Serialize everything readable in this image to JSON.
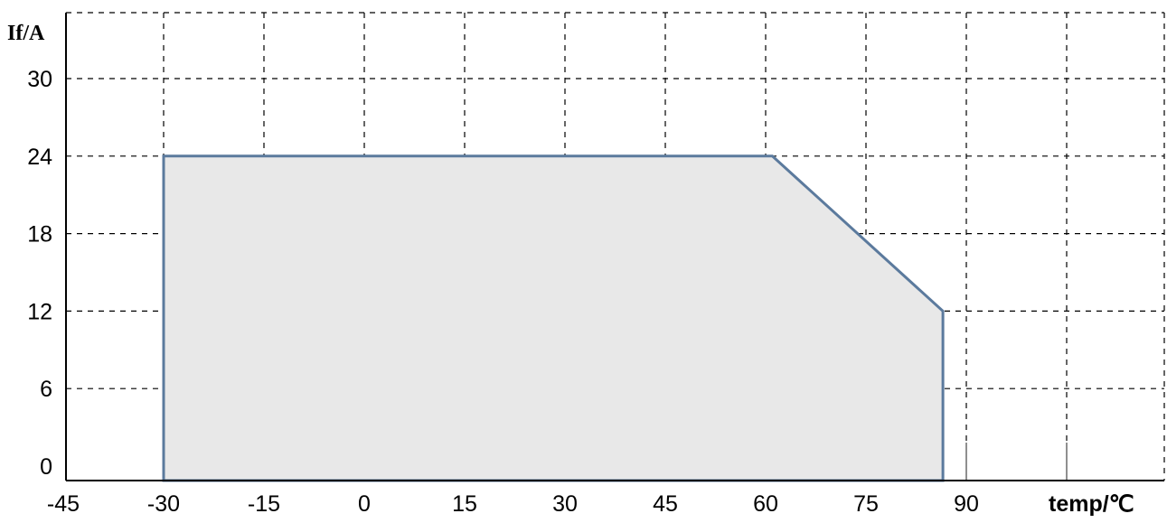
{
  "chart_data": {
    "type": "area",
    "title": "",
    "xlabel": "temp/℃",
    "ylabel": "If/A",
    "x_ticks": [
      "-45",
      "-30",
      "-15",
      "0",
      "15",
      "30",
      "45",
      "60",
      "75",
      "90"
    ],
    "y_ticks": [
      "0",
      "6",
      "12",
      "18",
      "24",
      "30"
    ],
    "xlim": [
      -45,
      120
    ],
    "ylim": [
      -1,
      36
    ],
    "grid": true,
    "series": [
      {
        "x": [
          -30,
          -30,
          61,
          86.5,
          86.5,
          -30
        ],
        "y": [
          -1,
          24,
          24,
          12,
          -1,
          -1
        ]
      }
    ],
    "colors": {
      "fill": "#e8e8e8",
      "stroke": "#5b7a9d",
      "grid": "#000000"
    }
  }
}
